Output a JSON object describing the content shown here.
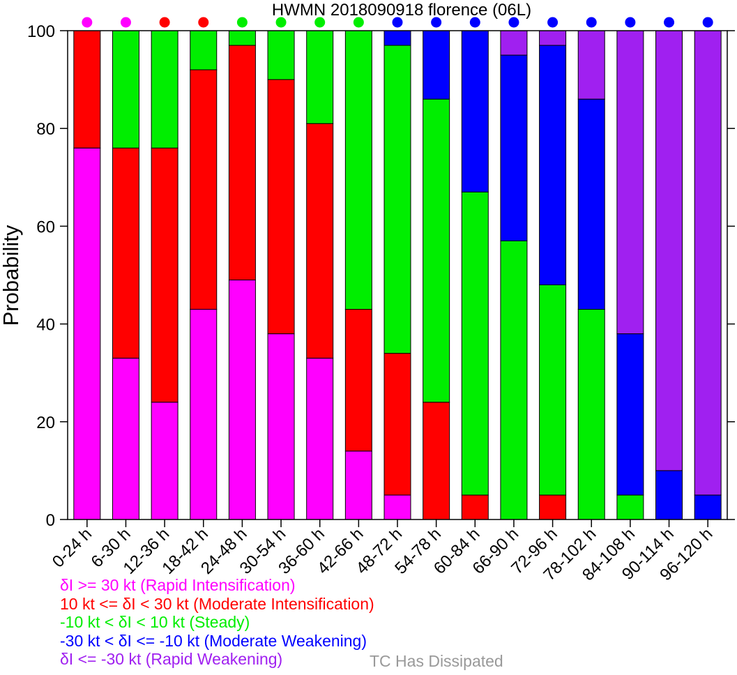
{
  "chart_data": {
    "type": "bar",
    "stacked": true,
    "title": "HWMN 2018090918 florence (06L)",
    "ylabel": "Probability",
    "xlabel": "",
    "ylim": [
      0,
      100
    ],
    "yticks": [
      0,
      20,
      40,
      60,
      80,
      100
    ],
    "grid": false,
    "categories": [
      "0-24 h",
      "6-30 h",
      "12-36 h",
      "18-42 h",
      "24-48 h",
      "30-54 h",
      "36-60 h",
      "42-66 h",
      "48-72 h",
      "54-78 h",
      "60-84 h",
      "66-90 h",
      "72-96 h",
      "78-102 h",
      "84-108 h",
      "90-114 h",
      "96-120 h"
    ],
    "series": [
      {
        "key": "ri",
        "color": "#ff00ff",
        "values": [
          76,
          33,
          24,
          43,
          49,
          38,
          33,
          14,
          5,
          0,
          0,
          0,
          0,
          0,
          0,
          0,
          0
        ]
      },
      {
        "key": "mi",
        "color": "#ff0000",
        "values": [
          24,
          43,
          52,
          49,
          48,
          52,
          48,
          29,
          29,
          24,
          5,
          0,
          5,
          0,
          0,
          0,
          0
        ]
      },
      {
        "key": "steady",
        "color": "#00ee00",
        "values": [
          0,
          24,
          24,
          8,
          3,
          10,
          19,
          57,
          63,
          62,
          62,
          57,
          43,
          43,
          5,
          0,
          0
        ]
      },
      {
        "key": "mw",
        "color": "#0000ff",
        "values": [
          0,
          0,
          0,
          0,
          0,
          0,
          0,
          0,
          3,
          14,
          33,
          38,
          49,
          43,
          33,
          10,
          5
        ]
      },
      {
        "key": "rw",
        "color": "#a020f0",
        "values": [
          0,
          0,
          0,
          0,
          0,
          0,
          0,
          0,
          0,
          0,
          0,
          5,
          3,
          14,
          62,
          90,
          95
        ]
      }
    ],
    "indicator_dots": [
      "#ff00ff",
      "#ff00ff",
      "#ff0000",
      "#ff0000",
      "#00ee00",
      "#00ee00",
      "#00ee00",
      "#00ee00",
      "#0000ff",
      "#0000ff",
      "#0000ff",
      "#0000ff",
      "#0000ff",
      "#0000ff",
      "#0000ff",
      "#0000ff",
      "#0000ff"
    ]
  },
  "legend": [
    {
      "text": "δI >= 30 kt (Rapid Intensification)",
      "color": "#ff00ff"
    },
    {
      "text": "10 kt <= δI < 30 kt (Moderate Intensification)",
      "color": "#ff0000"
    },
    {
      "text": "-10 kt < δI < 10 kt (Steady)",
      "color": "#00ee00"
    },
    {
      "text": "-30 kt < δI <= -10 kt (Moderate Weakening)",
      "color": "#0000ff"
    },
    {
      "text": "δI <= -30 kt (Rapid Weakening)",
      "color": "#a020f0"
    }
  ],
  "legend_extra": {
    "text": "TC Has Dissipated",
    "color": "#999999"
  }
}
